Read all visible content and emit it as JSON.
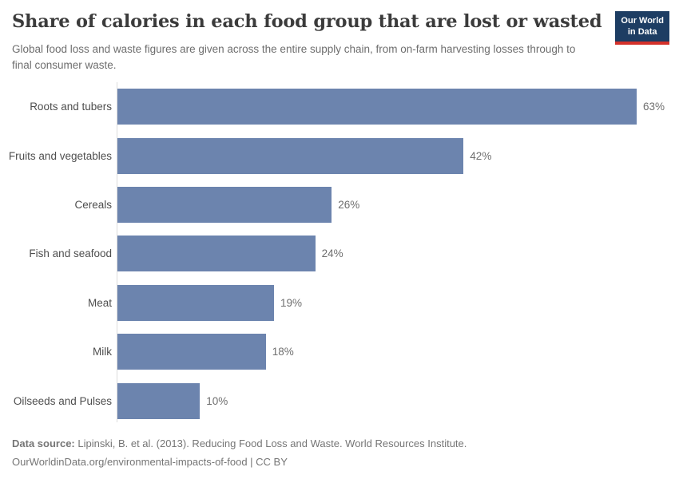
{
  "header": {
    "title": "Share of calories in each food group that are lost or wasted",
    "subtitle": "Global food loss and waste figures are given across the entire supply chain, from on-farm harvesting losses through to final consumer waste.",
    "logo": {
      "line1": "Our World",
      "line2": "in Data"
    }
  },
  "chart_data": {
    "type": "bar",
    "orientation": "horizontal",
    "title": "Share of calories in each food group that are lost or wasted",
    "categories": [
      "Roots and tubers",
      "Fruits and vegetables",
      "Cereals",
      "Fish and seafood",
      "Meat",
      "Milk",
      "Oilseeds and Pulses"
    ],
    "values": [
      63,
      42,
      26,
      24,
      19,
      18,
      10
    ],
    "value_labels": [
      "63%",
      "42%",
      "26%",
      "24%",
      "19%",
      "18%",
      "10%"
    ],
    "unit": "%",
    "xlim": [
      0,
      68
    ],
    "grid": false,
    "legend": "none",
    "bar_color": "#6c84ae"
  },
  "footer": {
    "data_source_label": "Data source:",
    "data_source_text": " Lipinski, B. et al. (2013). Reducing Food Loss and Waste. World Resources Institute.",
    "citation": "OurWorldinData.org/environmental-impacts-of-food | CC BY"
  },
  "colors": {
    "bar": "#6c84ae",
    "title_text": "#3b3b3b",
    "subtitle_text": "#6e6e6e",
    "label_text": "#4e4e4e",
    "value_text": "#6e6e6e",
    "axis_line": "#dcdcdc",
    "logo_bg": "#1d3d63",
    "logo_accent": "#d4312a",
    "footer_text": "#757575"
  }
}
